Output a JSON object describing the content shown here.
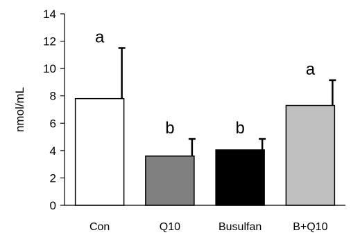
{
  "chart_data": {
    "type": "bar",
    "categories": [
      "Con",
      "Q10",
      "Busulfan",
      "B+Q10"
    ],
    "values": [
      7.8,
      3.6,
      4.05,
      7.3
    ],
    "errors": [
      3.7,
      1.25,
      0.8,
      1.85
    ],
    "significance": [
      "a",
      "b",
      "b",
      "a"
    ],
    "colors": [
      "#ffffff",
      "#808080",
      "#000000",
      "#c0c0c0"
    ],
    "title": "",
    "xlabel": "",
    "ylabel": "nmol/mL",
    "ylim": [
      0,
      14
    ],
    "yticks": [
      0,
      2,
      4,
      6,
      8,
      10,
      12,
      14
    ],
    "grid": false,
    "legend": "none"
  }
}
